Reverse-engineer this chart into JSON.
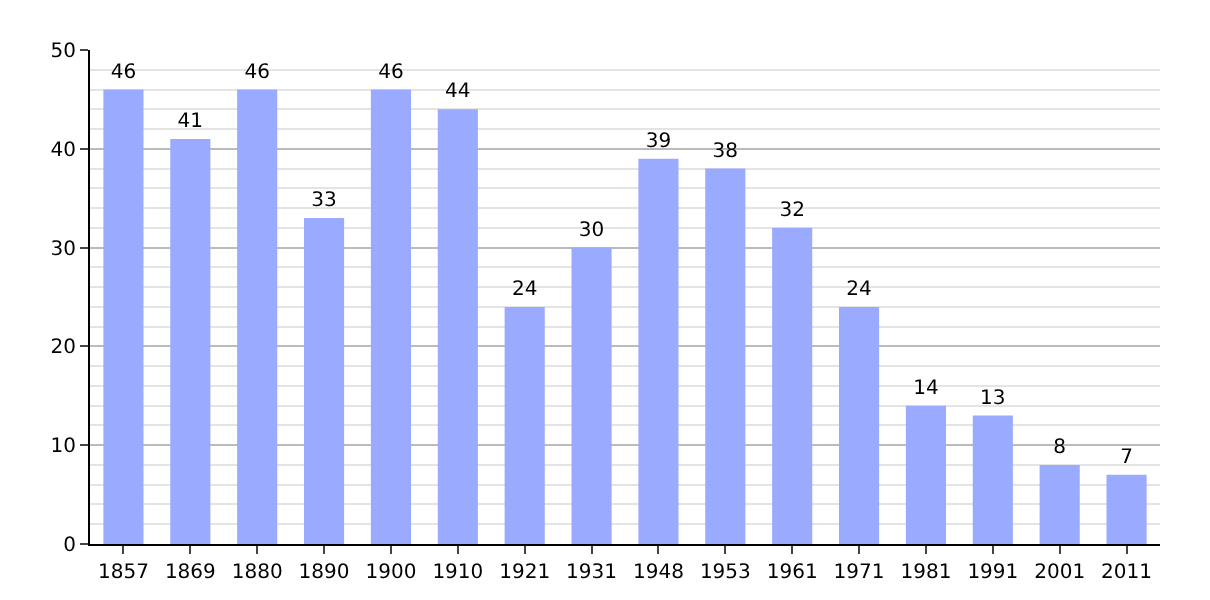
{
  "chart_data": {
    "type": "bar",
    "categories": [
      "1857",
      "1869",
      "1880",
      "1890",
      "1900",
      "1910",
      "1921",
      "1931",
      "1948",
      "1953",
      "1961",
      "1971",
      "1981",
      "1991",
      "2001",
      "2011"
    ],
    "values": [
      46,
      41,
      46,
      33,
      46,
      44,
      24,
      30,
      39,
      38,
      32,
      24,
      14,
      13,
      8,
      7
    ],
    "color": "#99aaff",
    "ylim": [
      0,
      50
    ],
    "yticks": [
      0,
      10,
      20,
      30,
      40,
      50
    ],
    "grid": "y",
    "data_labels": true
  }
}
